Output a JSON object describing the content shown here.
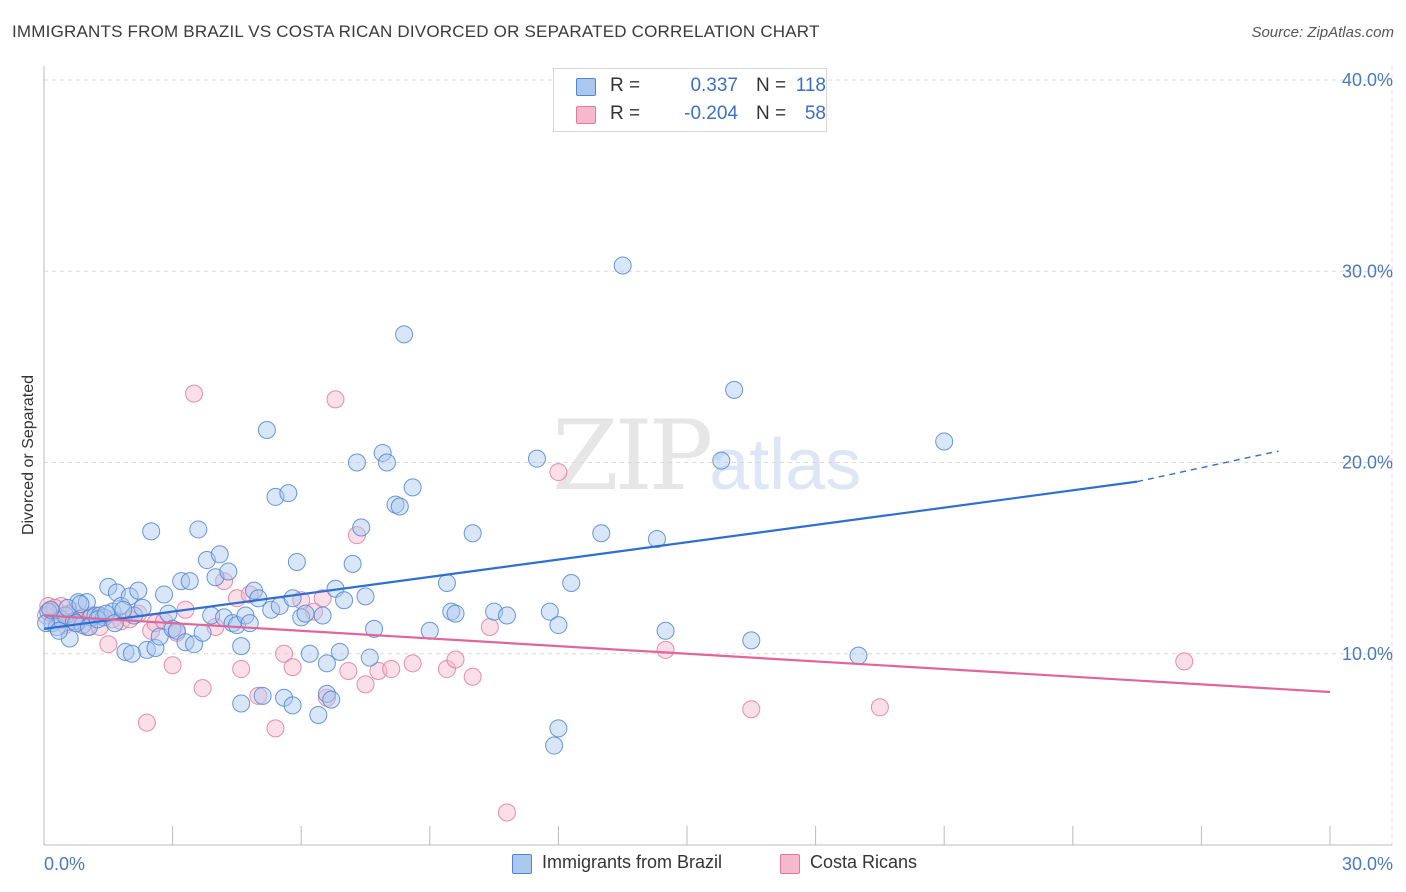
{
  "title": "IMMIGRANTS FROM BRAZIL VS COSTA RICAN DIVORCED OR SEPARATED CORRELATION CHART",
  "source": "Source: ZipAtlas.com",
  "watermark": {
    "zip": "ZIP",
    "atlas": "atlas"
  },
  "colors": {
    "blue_fill": "#aac7ee",
    "blue_stroke": "#4f86d4",
    "blue_line": "#2f6fd1",
    "pink_fill": "#f5b8cc",
    "pink_stroke": "#e27aa0",
    "pink_line": "#e0669a",
    "tick_text": "#4a78c2",
    "grid": "#d9d9d9"
  },
  "legend": {
    "rows": [
      {
        "r_label": "R =",
        "r_value": "0.337",
        "n_label": "N =",
        "n_value": "118",
        "series": "blue"
      },
      {
        "r_label": "R =",
        "r_value": "-0.204",
        "n_label": "N =",
        "n_value": "58",
        "series": "pink"
      }
    ]
  },
  "bottom_legend": [
    {
      "label": "Immigrants from Brazil",
      "series": "blue"
    },
    {
      "label": "Costa Ricans",
      "series": "pink"
    }
  ],
  "chart_data": {
    "type": "scatter",
    "title": "IMMIGRANTS FROM BRAZIL VS COSTA RICAN DIVORCED OR SEPARATED CORRELATION CHART",
    "xlabel": "",
    "ylabel": "Divorced or Separated",
    "xlim": [
      0,
      30
    ],
    "ylim": [
      0,
      40
    ],
    "x_tick_labels": [
      "0.0%",
      "30.0%"
    ],
    "y_tick_labels": [
      "10.0%",
      "20.0%",
      "30.0%",
      "40.0%"
    ],
    "y_ticks": [
      10,
      20,
      30,
      40
    ],
    "grid": "horizontal dashed",
    "legend_position": "top-center",
    "series": [
      {
        "name": "Immigrants from Brazil",
        "color": "blue",
        "trend": {
          "x": [
            0.0,
            25.5
          ],
          "y": [
            11.3,
            19.0
          ],
          "dashed_extension_to_x": 28.8,
          "dashed_extension_y": 20.6
        },
        "points": [
          [
            0.1,
            12.2
          ],
          [
            0.2,
            11.6
          ],
          [
            0.3,
            11.4
          ],
          [
            0.4,
            11.8
          ],
          [
            0.5,
            12.0
          ],
          [
            0.6,
            10.8
          ],
          [
            0.7,
            11.7
          ],
          [
            0.8,
            12.7
          ],
          [
            0.9,
            11.5
          ],
          [
            1.0,
            12.7
          ],
          [
            1.1,
            11.9
          ],
          [
            1.2,
            12.0
          ],
          [
            1.3,
            12.0
          ],
          [
            1.4,
            11.9
          ],
          [
            1.5,
            13.5
          ],
          [
            1.6,
            12.2
          ],
          [
            1.7,
            13.2
          ],
          [
            1.8,
            12.5
          ],
          [
            1.9,
            10.1
          ],
          [
            2.0,
            13.0
          ],
          [
            2.1,
            12.0
          ],
          [
            2.2,
            13.3
          ],
          [
            2.3,
            12.4
          ],
          [
            2.4,
            10.2
          ],
          [
            2.5,
            16.4
          ],
          [
            2.6,
            10.3
          ],
          [
            2.7,
            10.9
          ],
          [
            2.8,
            13.1
          ],
          [
            2.9,
            12.1
          ],
          [
            3.0,
            11.3
          ],
          [
            3.1,
            11.2
          ],
          [
            3.2,
            13.8
          ],
          [
            3.3,
            10.6
          ],
          [
            3.4,
            13.8
          ],
          [
            3.5,
            10.5
          ],
          [
            3.6,
            16.5
          ],
          [
            3.7,
            11.1
          ],
          [
            3.8,
            14.9
          ],
          [
            3.9,
            12.0
          ],
          [
            4.0,
            14.0
          ],
          [
            4.1,
            15.2
          ],
          [
            4.2,
            11.9
          ],
          [
            4.3,
            14.3
          ],
          [
            4.4,
            11.6
          ],
          [
            4.5,
            11.5
          ],
          [
            4.6,
            7.4
          ],
          [
            4.6,
            10.4
          ],
          [
            4.7,
            12.0
          ],
          [
            4.8,
            11.6
          ],
          [
            4.9,
            13.3
          ],
          [
            5.0,
            12.9
          ],
          [
            5.1,
            7.8
          ],
          [
            5.2,
            21.7
          ],
          [
            5.3,
            12.3
          ],
          [
            5.4,
            18.2
          ],
          [
            5.5,
            12.5
          ],
          [
            5.6,
            7.7
          ],
          [
            5.7,
            18.4
          ],
          [
            5.8,
            12.9
          ],
          [
            5.8,
            7.3
          ],
          [
            5.9,
            14.8
          ],
          [
            6.0,
            11.9
          ],
          [
            6.1,
            12.1
          ],
          [
            6.2,
            10.0
          ],
          [
            6.4,
            6.8
          ],
          [
            6.5,
            12.0
          ],
          [
            6.6,
            7.9
          ],
          [
            6.6,
            9.5
          ],
          [
            6.7,
            7.6
          ],
          [
            6.8,
            13.4
          ],
          [
            6.9,
            10.1
          ],
          [
            7.0,
            12.8
          ],
          [
            7.2,
            14.7
          ],
          [
            7.3,
            20.0
          ],
          [
            7.4,
            16.6
          ],
          [
            7.5,
            13.0
          ],
          [
            7.6,
            9.8
          ],
          [
            7.7,
            11.3
          ],
          [
            7.9,
            20.5
          ],
          [
            8.0,
            20.0
          ],
          [
            8.2,
            17.8
          ],
          [
            8.3,
            17.7
          ],
          [
            8.4,
            26.7
          ],
          [
            8.6,
            18.7
          ],
          [
            9.0,
            11.2
          ],
          [
            9.4,
            13.7
          ],
          [
            9.5,
            12.2
          ],
          [
            9.6,
            12.1
          ],
          [
            10.0,
            16.3
          ],
          [
            10.5,
            12.2
          ],
          [
            10.8,
            12.0
          ],
          [
            11.5,
            20.2
          ],
          [
            11.8,
            12.2
          ],
          [
            11.9,
            5.2
          ],
          [
            12.0,
            6.1
          ],
          [
            12.0,
            11.5
          ],
          [
            12.3,
            13.7
          ],
          [
            13.0,
            16.3
          ],
          [
            13.5,
            30.3
          ],
          [
            14.3,
            16.0
          ],
          [
            14.5,
            11.2
          ],
          [
            15.8,
            20.1
          ],
          [
            16.1,
            23.8
          ],
          [
            16.5,
            10.7
          ],
          [
            19.0,
            9.9
          ],
          [
            21.0,
            21.1
          ],
          [
            0.05,
            11.6
          ],
          [
            0.15,
            12.3
          ],
          [
            0.35,
            11.2
          ],
          [
            0.55,
            12.4
          ],
          [
            0.75,
            11.6
          ],
          [
            0.85,
            12.6
          ],
          [
            1.05,
            11.4
          ],
          [
            1.25,
            11.8
          ],
          [
            1.45,
            12.1
          ],
          [
            1.65,
            11.6
          ],
          [
            1.85,
            12.3
          ],
          [
            2.05,
            10.0
          ]
        ]
      },
      {
        "name": "Costa Ricans",
        "color": "pink",
        "trend": {
          "x": [
            0.0,
            30.0
          ],
          "y": [
            12.0,
            8.0
          ]
        },
        "points": [
          [
            0.1,
            12.5
          ],
          [
            0.2,
            12.2
          ],
          [
            0.3,
            11.8
          ],
          [
            0.4,
            12.5
          ],
          [
            0.5,
            11.5
          ],
          [
            0.6,
            12.1
          ],
          [
            0.7,
            12.2
          ],
          [
            0.8,
            11.7
          ],
          [
            0.9,
            11.9
          ],
          [
            1.0,
            11.4
          ],
          [
            1.1,
            12.0
          ],
          [
            1.3,
            11.4
          ],
          [
            1.5,
            10.5
          ],
          [
            1.6,
            11.8
          ],
          [
            1.8,
            11.7
          ],
          [
            2.0,
            11.8
          ],
          [
            2.2,
            12.1
          ],
          [
            2.4,
            6.4
          ],
          [
            2.5,
            11.2
          ],
          [
            2.6,
            11.6
          ],
          [
            2.8,
            11.7
          ],
          [
            3.0,
            9.4
          ],
          [
            3.1,
            11.1
          ],
          [
            3.3,
            12.3
          ],
          [
            3.5,
            23.6
          ],
          [
            3.7,
            8.2
          ],
          [
            4.0,
            11.4
          ],
          [
            4.2,
            13.8
          ],
          [
            4.5,
            12.9
          ],
          [
            4.6,
            9.2
          ],
          [
            4.8,
            13.1
          ],
          [
            5.0,
            7.8
          ],
          [
            5.4,
            6.1
          ],
          [
            5.6,
            10.0
          ],
          [
            5.8,
            9.3
          ],
          [
            6.0,
            12.8
          ],
          [
            6.3,
            12.2
          ],
          [
            6.5,
            12.9
          ],
          [
            6.6,
            7.7
          ],
          [
            6.8,
            23.3
          ],
          [
            7.1,
            9.1
          ],
          [
            7.3,
            16.2
          ],
          [
            7.5,
            8.4
          ],
          [
            7.8,
            9.1
          ],
          [
            8.1,
            9.2
          ],
          [
            8.6,
            9.5
          ],
          [
            9.4,
            9.2
          ],
          [
            9.6,
            9.7
          ],
          [
            10.0,
            8.8
          ],
          [
            10.4,
            11.4
          ],
          [
            10.8,
            1.7
          ],
          [
            12.0,
            19.5
          ],
          [
            14.5,
            10.2
          ],
          [
            16.5,
            7.1
          ],
          [
            19.5,
            7.2
          ],
          [
            26.6,
            9.6
          ],
          [
            0.05,
            12.0
          ],
          [
            0.25,
            12.4
          ]
        ]
      }
    ]
  }
}
